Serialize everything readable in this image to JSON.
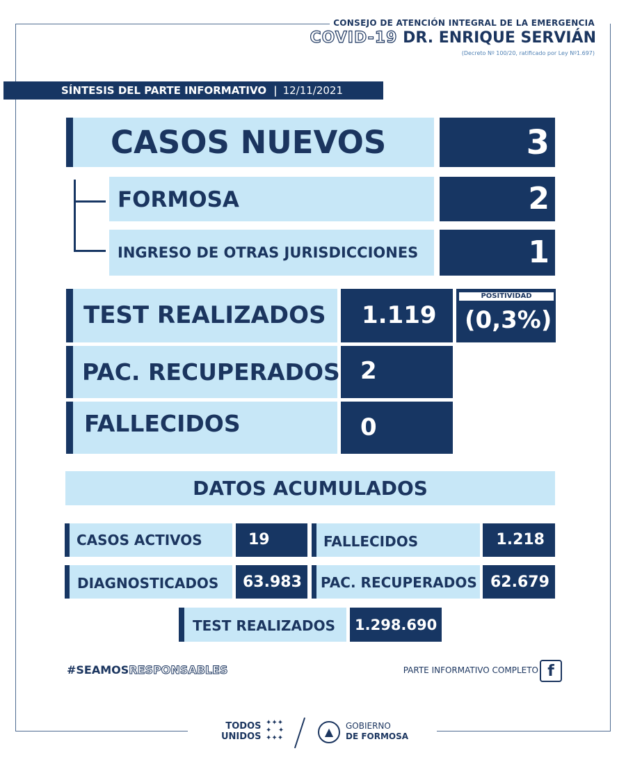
{
  "header": {
    "line1": "CONSEJO DE ATENCIÓN INTEGRAL DE LA EMERGENCIA",
    "covid": "COVID-19",
    "doctor": "DR. ENRIQUE SERVIÁN",
    "decree": "(Decreto Nº 100/20, ratificado por Ley Nº1.697)"
  },
  "synthesis": {
    "title": "SÍNTESIS DEL PARTE INFORMATIVO",
    "separator": "|",
    "date": "12/11/2021"
  },
  "new_cases": {
    "label": "CASOS NUEVOS",
    "value": "3",
    "formosa_label": "FORMOSA",
    "formosa_value": "2",
    "other_label": "INGRESO DE OTRAS JURISDICCIONES",
    "other_value": "1"
  },
  "daily": {
    "tests_label": "TEST REALIZADOS",
    "tests_value": "1.119",
    "positivity_label": "POSITIVIDAD",
    "positivity_value": "(0,3%)",
    "recovered_label": "PAC. RECUPERADOS",
    "recovered_value": "2",
    "deaths_label": "FALLECIDOS",
    "deaths_value": "0"
  },
  "accumulated": {
    "title": "DATOS ACUMULADOS",
    "active_label": "CASOS ACTIVOS",
    "active_value": "19",
    "deaths_label": "FALLECIDOS",
    "deaths_value": "1.218",
    "diagnosed_label": "DIAGNOSTICADOS",
    "diagnosed_value": "63.983",
    "recovered_label": "PAC. RECUPERADOS",
    "recovered_value": "62.679",
    "tests_label": "TEST REALIZADOS",
    "tests_value": "1.298.690"
  },
  "footer": {
    "hashtag_a": "#SEAMOS",
    "hashtag_b": "RESPONSABLES",
    "parte": "PARTE INFORMATIVO COMPLETO",
    "fb_icon": "facebook-icon",
    "todos": "TODOS",
    "unidos": "UNIDOS",
    "gobierno": "GOBIERNO",
    "de_formosa": "DE FORMOSA"
  }
}
